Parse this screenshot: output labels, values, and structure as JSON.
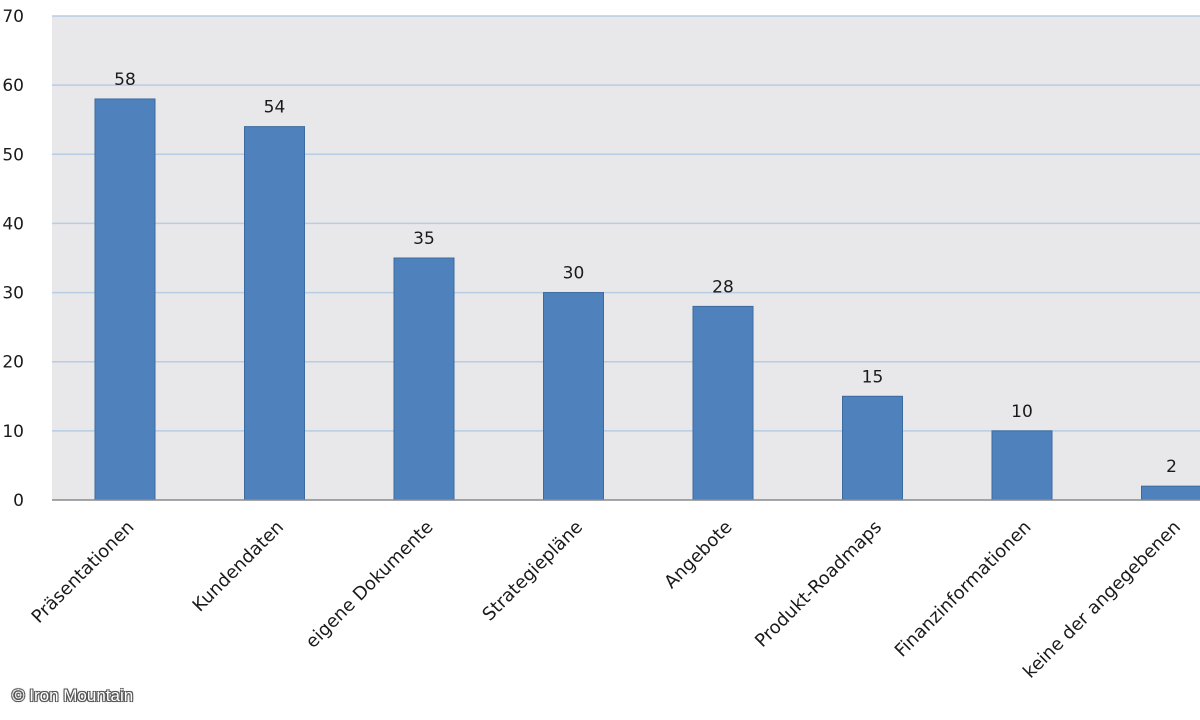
{
  "chart_data": {
    "type": "bar",
    "categories": [
      "Präsentationen",
      "Kundendaten",
      "eigene Dokumente",
      "Strategiepläne",
      "Angebote",
      "Produkt-Roadmaps",
      "Finanzinformationen",
      "keine der angegebenen"
    ],
    "values": [
      58,
      54,
      35,
      30,
      28,
      15,
      10,
      2
    ],
    "data_labels": [
      "58",
      "54",
      "35",
      "30",
      "28",
      "15",
      "10",
      "2"
    ],
    "ylim": [
      0,
      70
    ],
    "yticks": [
      "0",
      "10",
      "20",
      "30",
      "40",
      "50",
      "60",
      "70"
    ],
    "grid": true,
    "legend": "none",
    "bar_color": "#4f81bd",
    "plot_background": "#e8e8ea",
    "grid_color": "#b8cce4"
  },
  "credit": "© Iron Mountain"
}
